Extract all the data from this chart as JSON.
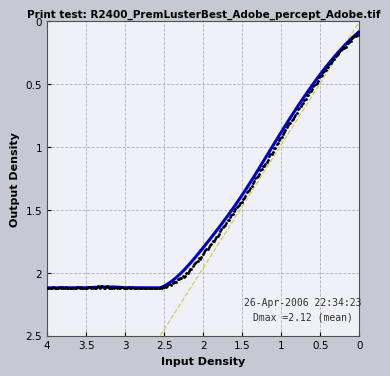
{
  "title": "Print test: R2400_PremLusterBest_Adobe_percept_Adobe.tif",
  "xlabel": "Input Density",
  "ylabel": "Output Density",
  "annotation_line1": "26-Apr-2006 22:34:23",
  "annotation_line2": "Dmax =2.12 (mean)",
  "xlim": [
    4.0,
    0.0
  ],
  "ylim": [
    2.5,
    0.0
  ],
  "xticks": [
    4.0,
    3.5,
    3.0,
    2.5,
    2.0,
    1.5,
    1.0,
    0.5,
    0.0
  ],
  "yticks": [
    0.0,
    0.5,
    1.0,
    1.5,
    2.0,
    2.5
  ],
  "background_color": "#c8c8d4",
  "plot_bg_color": "#f0f0f8",
  "title_fontsize": 7.5,
  "axis_label_fontsize": 8,
  "tick_fontsize": 7.5,
  "annotation_fontsize": 7,
  "dmax": 2.12,
  "grid_color": "#b0b0c0",
  "blue_color": "#0000cc",
  "black_color": "#000000",
  "diag_color": "#c8c840"
}
